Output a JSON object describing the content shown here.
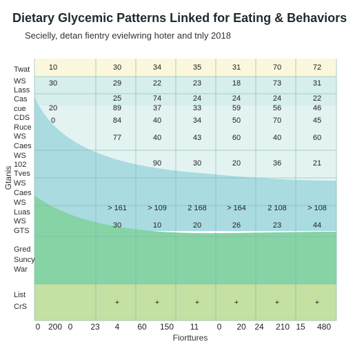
{
  "chart_data": {
    "type": "table",
    "title": "Dietary Glycemic Patterns Linked for Eating & Behaviors",
    "subtitle": "Secielly, detan fientry evielwring hoter and tnly 2018",
    "xlabel": "Fiorttures",
    "ylabel": "Gtanis",
    "x_ticks": [
      "0",
      "200",
      "0",
      "23",
      "4",
      "60",
      "150",
      "11",
      "0",
      "20",
      "24",
      "210",
      "15",
      "480"
    ],
    "row_labels": [
      "Twat",
      "WS",
      "Lass",
      "Cas",
      "cue",
      "CDS",
      "Ruce",
      "WS",
      "Caes",
      "WS",
      "102",
      "Tves",
      "WS",
      "Caes",
      "WS",
      "Luas",
      "WS",
      "GTS",
      "Gred",
      "Suncy",
      "War",
      "List",
      "CrS"
    ],
    "rows": [
      [
        "10",
        "30",
        "34",
        "35",
        "31",
        "70",
        "72"
      ],
      [
        "30",
        "29",
        "22",
        "23",
        "18",
        "73",
        "31"
      ],
      [
        "25",
        "74",
        "24",
        "24",
        "24",
        "22"
      ],
      [
        "20",
        "89",
        "37",
        "33",
        "59",
        "56",
        "46"
      ],
      [
        "0",
        "84",
        "40",
        "34",
        "50",
        "70",
        "45"
      ],
      [
        "77",
        "40",
        "43",
        "60",
        "40",
        "60"
      ],
      [
        "90",
        "30",
        "20",
        "36",
        "21"
      ],
      [
        "> 161",
        "> 109",
        "2 168",
        "> 164",
        "2 108",
        "> 108"
      ],
      [
        "30",
        "10",
        "20",
        "26",
        "23",
        "44"
      ],
      [
        "+",
        "+",
        "+",
        "+",
        "+",
        "+"
      ]
    ],
    "colors": {
      "top_band": "#fbf7dc",
      "teal": "#a9dbe0",
      "green": "#86d3a6",
      "bottom_band": "#c4e0a3",
      "grid": "#7fb8a8"
    }
  }
}
